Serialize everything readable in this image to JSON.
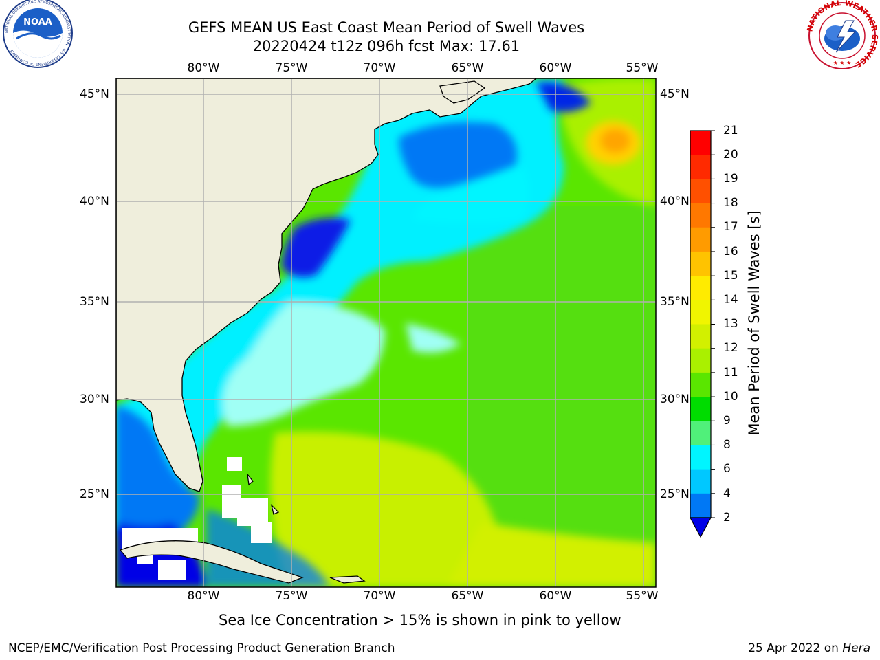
{
  "title": {
    "line1": "GEFS MEAN US East Coast Mean Period of Swell Waves",
    "line2": "20220424 t12z 096h fcst   Max: 17.61"
  },
  "map": {
    "region": "US East Coast / Western North Atlantic",
    "projection": "lat-lon",
    "lon_labels": [
      "80°W",
      "75°W",
      "70°W",
      "65°W",
      "60°W",
      "55°W"
    ],
    "lat_labels": [
      "45°N",
      "40°N",
      "35°N",
      "30°N",
      "25°N"
    ],
    "grid": true,
    "land_color": "#efeedc",
    "no_data_color": "#ffffff"
  },
  "colorbar": {
    "title": "Mean Period of Swell Waves [s]",
    "ticks": [
      "21",
      "20",
      "19",
      "18",
      "17",
      "16",
      "15",
      "14",
      "13",
      "12",
      "11",
      "10",
      "9",
      "8",
      "6",
      "4",
      "2"
    ],
    "colors_top_to_bottom": [
      "#ff0000",
      "#ff2a00",
      "#ff5000",
      "#ff7800",
      "#ff9b00",
      "#ffc300",
      "#ffeb00",
      "#f0f500",
      "#d2f000",
      "#aaf000",
      "#5ae600",
      "#00dc00",
      "#50f07a",
      "#a0fff5",
      "#50fff5",
      "#00f5ff",
      "#00c8ff",
      "#0078f5"
    ],
    "extend_color": "#0000e6"
  },
  "chart_data": {
    "type": "heatmap",
    "variable": "Mean Period of Swell Waves",
    "units": "s",
    "max": 17.61,
    "levels": [
      2,
      4,
      6,
      8,
      9,
      10,
      11,
      12,
      13,
      14,
      15,
      16,
      17,
      18,
      19,
      20,
      21
    ]
  },
  "note": "Sea Ice Concentration > 15% is shown in pink to yellow",
  "footer": {
    "left": "NCEP/EMC/Verification Post Processing Product Generation Branch",
    "right_date": "25 Apr 2022 on ",
    "right_machine": "Hera"
  },
  "logos": {
    "noaa_text": "NOAA",
    "noaa_ring": "NATIONAL OCEANIC AND ATMOSPHERIC ADMINISTRATION · U.S. DEPARTMENT OF COMMERCE",
    "nws_ring": "NATIONAL WEATHER SERVICE"
  }
}
